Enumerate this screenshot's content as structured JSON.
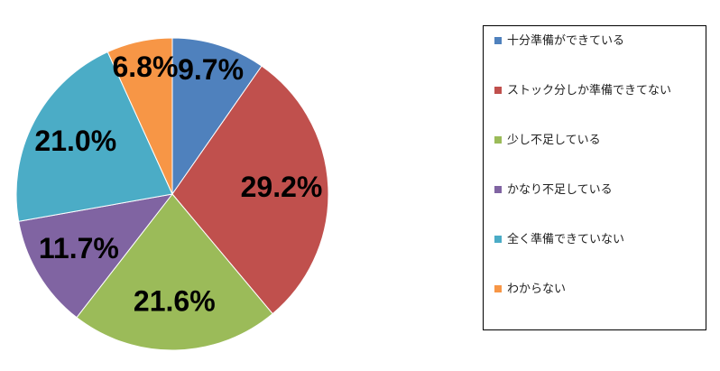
{
  "chart_data": {
    "type": "pie",
    "categories": [
      "十分準備ができている",
      "ストック分しか準備できてない",
      "少し不足している",
      "かなり不足している",
      "全く準備できていない",
      "わからない"
    ],
    "values": [
      9.7,
      29.2,
      21.6,
      11.7,
      21.0,
      6.8
    ],
    "value_labels": [
      "9.7%",
      "29.2%",
      "21.6%",
      "11.7%",
      "21.0%",
      "6.8%"
    ],
    "colors": [
      "#4f81bd",
      "#c0504d",
      "#9bbb59",
      "#8064a2",
      "#4bacc6",
      "#f79646"
    ],
    "legend": "right"
  }
}
